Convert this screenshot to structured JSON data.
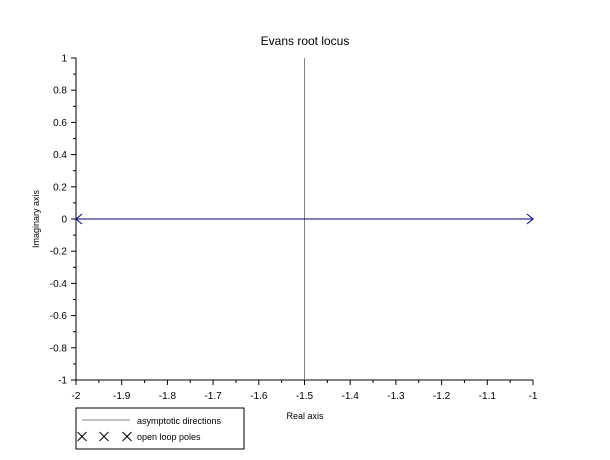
{
  "chart_data": {
    "type": "line",
    "title": "Evans root locus",
    "xlabel": "Real axis",
    "ylabel": "Imaginary axis",
    "xlim": [
      -2,
      -1
    ],
    "ylim": [
      -1,
      1
    ],
    "x_ticks": [
      -2,
      -1.9,
      -1.8,
      -1.7,
      -1.6,
      -1.5,
      -1.4,
      -1.3,
      -1.2,
      -1.1,
      -1
    ],
    "y_ticks": [
      1,
      0.8,
      0.6,
      0.4,
      0.2,
      0,
      -0.2,
      -0.4,
      -0.6,
      -0.8,
      -1
    ],
    "x_tick_labels": [
      "-2",
      "-1.9",
      "-1.8",
      "-1.7",
      "-1.6",
      "-1.5",
      "-1.4",
      "-1.3",
      "-1.2",
      "-1.1",
      "-1"
    ],
    "y_tick_labels": [
      "1",
      "0.8",
      "0.6",
      "0.4",
      "0.2",
      "0",
      "-0.2",
      "-0.4",
      "-0.6",
      "-0.8",
      "-1"
    ],
    "grid": false,
    "series": [
      {
        "name": "asymptotic directions",
        "color": "#808080",
        "x": [
          -1.5,
          -1.5
        ],
        "y": [
          1,
          -1
        ]
      },
      {
        "name": "open loop poles",
        "color": "#000000",
        "marker": "x",
        "x": [],
        "y": []
      }
    ],
    "locus_branches": [
      {
        "x": [
          -2,
          -1
        ],
        "y": [
          0,
          0
        ],
        "color": "#000080",
        "arrows": "both"
      }
    ],
    "legend": {
      "placement": "bottom-left",
      "entries": [
        "asymptotic directions",
        "open loop poles"
      ]
    }
  }
}
